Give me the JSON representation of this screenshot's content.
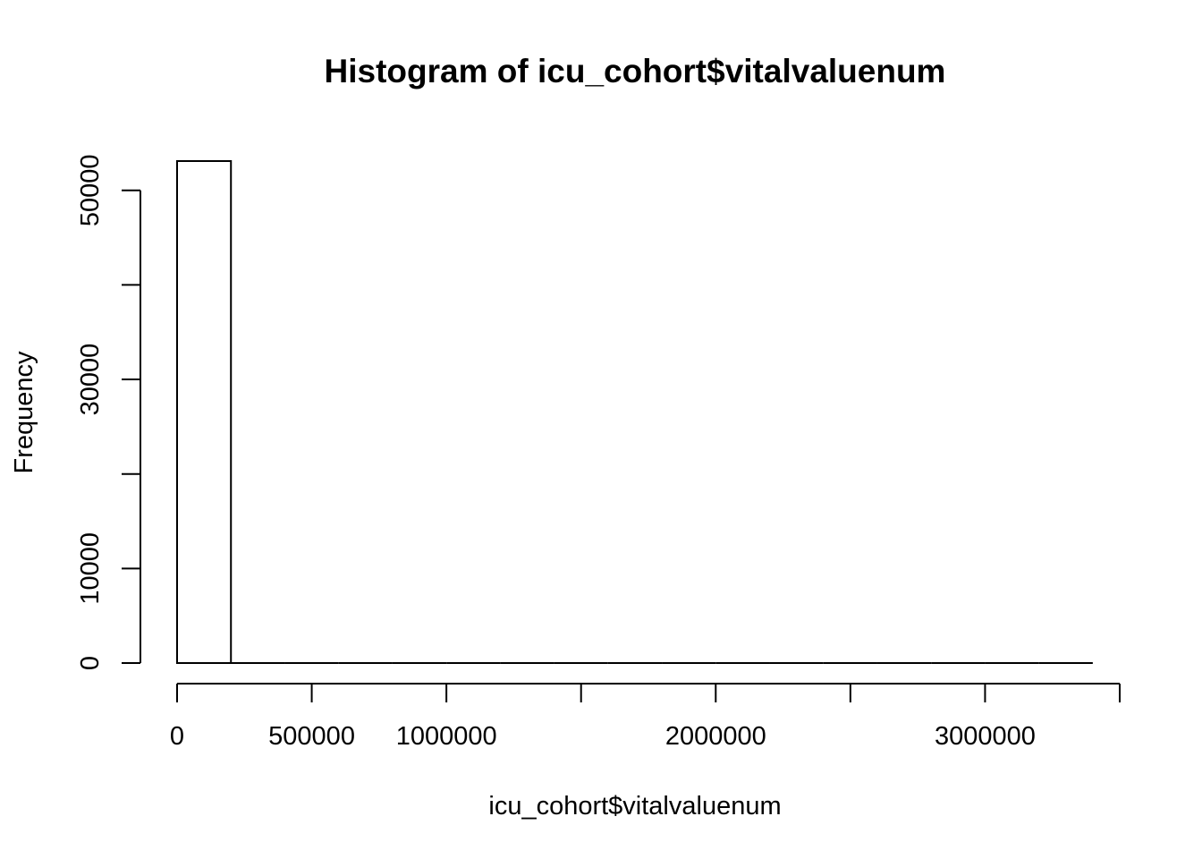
{
  "chart_data": {
    "type": "bar",
    "title": "Histogram of icu_cohort$vitalvaluenum",
    "xlabel": "icu_cohort$vitalvaluenum",
    "ylabel": "Frequency",
    "bin_edges": [
      0,
      200000,
      400000,
      600000,
      800000,
      1000000,
      1200000,
      1400000,
      1600000,
      1800000,
      2000000,
      2200000,
      2400000,
      2600000,
      2800000,
      3000000,
      3200000,
      3400000
    ],
    "values": [
      53100,
      0,
      0,
      0,
      0,
      0,
      0,
      0,
      0,
      0,
      0,
      0,
      0,
      0,
      0,
      0,
      0
    ],
    "xlim": [
      0,
      3500000
    ],
    "ylim": [
      0,
      53100
    ],
    "x_tick_values": [
      0,
      500000,
      1000000,
      1500000,
      2000000,
      2500000,
      3000000,
      3500000
    ],
    "x_tick_labels": [
      "0",
      "500000",
      "1000000",
      "",
      "2000000",
      "",
      "3000000",
      ""
    ],
    "y_tick_values": [
      0,
      10000,
      20000,
      30000,
      40000,
      50000
    ],
    "y_tick_labels": [
      "0",
      "10000",
      "",
      "30000",
      "",
      "50000"
    ],
    "grid": false,
    "legend": "none",
    "colors": {
      "bar_fill": "#ffffff",
      "bar_stroke": "#000000",
      "axis": "#000000"
    }
  }
}
